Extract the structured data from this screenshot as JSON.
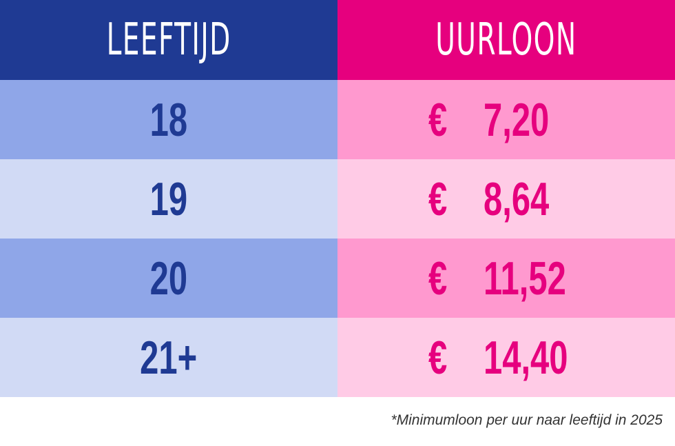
{
  "table": {
    "header": {
      "age_label": "LEEFTIJD",
      "wage_label": "UURLOON",
      "age_bg": "#1f3a93",
      "wage_bg": "#e6007e"
    },
    "currency_symbol": "€",
    "rows": [
      {
        "age": "18",
        "wage": "7,20",
        "age_bg": "#8fa6e8",
        "wage_bg": "#ff99cf"
      },
      {
        "age": "19",
        "wage": "8,64",
        "age_bg": "#d1daf5",
        "wage_bg": "#ffcbe6"
      },
      {
        "age": "20",
        "wage": "11,52",
        "age_bg": "#8fa6e8",
        "wage_bg": "#ff99cf"
      },
      {
        "age": "21+",
        "wage": "14,40",
        "age_bg": "#d1daf5",
        "wage_bg": "#ffcbe6"
      }
    ]
  },
  "footnote": "*Minimumloon per uur naar leeftijd in 2025"
}
